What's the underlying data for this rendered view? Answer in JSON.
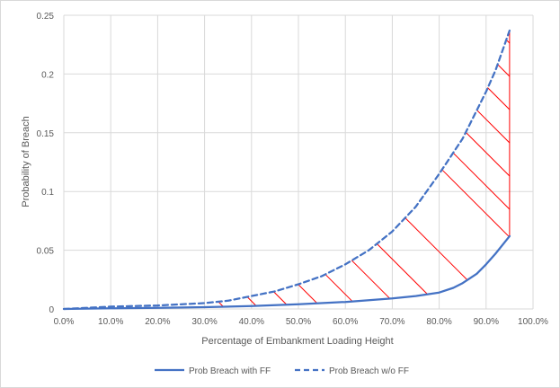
{
  "chart_data": {
    "type": "line",
    "title": "",
    "xlabel": "Percentage of Embankment  Loading Height",
    "ylabel": "Probability of Breach",
    "xlim": [
      0,
      100
    ],
    "ylim": [
      0,
      0.25
    ],
    "x_ticks": [
      "0.0%",
      "10.0%",
      "20.0%",
      "30.0%",
      "40.0%",
      "50.0%",
      "60.0%",
      "70.0%",
      "80.0%",
      "90.0%",
      "100.0%"
    ],
    "y_ticks": [
      "0",
      "0.05",
      "0.1",
      "0.15",
      "0.2",
      "0.25"
    ],
    "grid": true,
    "legend": "bottom",
    "series": [
      {
        "name": "Prob Breach with FF",
        "style": "solid",
        "color": "#4472c4",
        "points": [
          [
            0,
            0
          ],
          [
            10,
            0.0005
          ],
          [
            20,
            0.001
          ],
          [
            30,
            0.0015
          ],
          [
            40,
            0.0025
          ],
          [
            50,
            0.004
          ],
          [
            60,
            0.006
          ],
          [
            70,
            0.009
          ],
          [
            75,
            0.011
          ],
          [
            80,
            0.014
          ],
          [
            83,
            0.018
          ],
          [
            85,
            0.022
          ],
          [
            88,
            0.03
          ],
          [
            90,
            0.038
          ],
          [
            92,
            0.047
          ],
          [
            95,
            0.062
          ]
        ]
      },
      {
        "name": "Prob Breach w/o FF",
        "style": "dashed",
        "color": "#4472c4",
        "points": [
          [
            0,
            0
          ],
          [
            5,
            0.001
          ],
          [
            10,
            0.002
          ],
          [
            20,
            0.003
          ],
          [
            30,
            0.005
          ],
          [
            35,
            0.007
          ],
          [
            40,
            0.011
          ],
          [
            45,
            0.015
          ],
          [
            50,
            0.021
          ],
          [
            55,
            0.028
          ],
          [
            60,
            0.038
          ],
          [
            65,
            0.05
          ],
          [
            70,
            0.066
          ],
          [
            75,
            0.087
          ],
          [
            80,
            0.115
          ],
          [
            85,
            0.145
          ],
          [
            90,
            0.185
          ],
          [
            92,
            0.203
          ],
          [
            95,
            0.237
          ]
        ]
      }
    ],
    "hatch_color": "#ff0000"
  }
}
